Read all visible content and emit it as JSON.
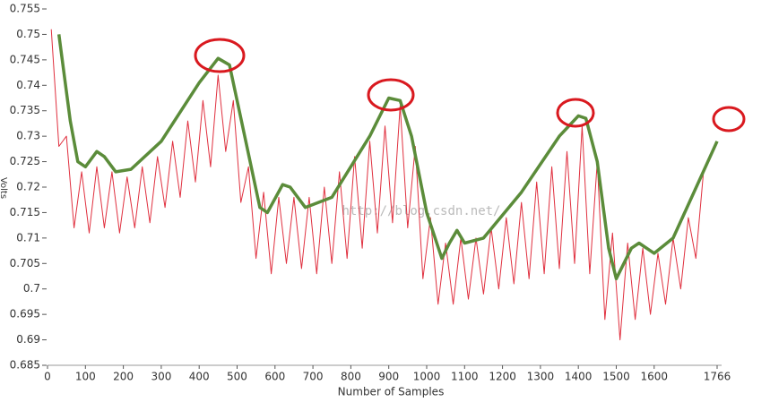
{
  "chart_data": {
    "type": "line",
    "x_label": "Number of Samples",
    "y_label": "Volts",
    "watermark": "http://blog.csdn.net/",
    "xlim": [
      0,
      1766
    ],
    "xticks": [
      0,
      100,
      200,
      300,
      400,
      500,
      600,
      700,
      800,
      900,
      1000,
      1100,
      1200,
      1300,
      1400,
      1500,
      1600,
      1766
    ],
    "ylim": [
      0.685,
      0.755
    ],
    "yticks": [
      0.685,
      0.69,
      0.695,
      0.7,
      0.705,
      0.71,
      0.715,
      0.72,
      0.725,
      0.73,
      0.735,
      0.74,
      0.745,
      0.75,
      0.755
    ],
    "series": [
      {
        "color": "#e0303f",
        "width": 1,
        "x": [
          10,
          30,
          50,
          70,
          90,
          110,
          130,
          150,
          170,
          190,
          210,
          230,
          250,
          270,
          290,
          310,
          330,
          350,
          370,
          390,
          410,
          430,
          450,
          470,
          490,
          510,
          530,
          550,
          570,
          590,
          610,
          630,
          650,
          670,
          690,
          710,
          730,
          750,
          770,
          790,
          810,
          830,
          850,
          870,
          890,
          910,
          930,
          950,
          970,
          990,
          1010,
          1030,
          1050,
          1070,
          1090,
          1110,
          1130,
          1150,
          1170,
          1190,
          1210,
          1230,
          1250,
          1270,
          1290,
          1310,
          1330,
          1350,
          1370,
          1390,
          1410,
          1430,
          1450,
          1470,
          1490,
          1510,
          1530,
          1550,
          1570,
          1590,
          1610,
          1630,
          1650,
          1670,
          1690,
          1710,
          1730
        ],
        "values": [
          0.751,
          0.728,
          0.73,
          0.712,
          0.723,
          0.711,
          0.724,
          0.712,
          0.723,
          0.711,
          0.722,
          0.712,
          0.724,
          0.713,
          0.726,
          0.716,
          0.729,
          0.718,
          0.733,
          0.721,
          0.737,
          0.724,
          0.742,
          0.727,
          0.737,
          0.717,
          0.724,
          0.706,
          0.719,
          0.703,
          0.718,
          0.705,
          0.718,
          0.704,
          0.718,
          0.703,
          0.72,
          0.705,
          0.723,
          0.706,
          0.726,
          0.708,
          0.729,
          0.711,
          0.732,
          0.713,
          0.736,
          0.712,
          0.728,
          0.702,
          0.714,
          0.697,
          0.709,
          0.697,
          0.71,
          0.698,
          0.71,
          0.699,
          0.712,
          0.7,
          0.714,
          0.701,
          0.717,
          0.702,
          0.721,
          0.703,
          0.724,
          0.704,
          0.727,
          0.705,
          0.732,
          0.703,
          0.725,
          0.694,
          0.711,
          0.69,
          0.709,
          0.694,
          0.708,
          0.695,
          0.707,
          0.697,
          0.71,
          0.7,
          0.714,
          0.706,
          0.723
        ]
      },
      {
        "color": "#5b8c3a",
        "width": 3.5,
        "x": [
          30,
          60,
          80,
          100,
          130,
          150,
          180,
          220,
          300,
          400,
          450,
          480,
          520,
          560,
          580,
          620,
          640,
          680,
          750,
          850,
          900,
          930,
          960,
          1000,
          1040,
          1060,
          1080,
          1100,
          1150,
          1250,
          1350,
          1400,
          1420,
          1450,
          1480,
          1500,
          1540,
          1560,
          1600,
          1650,
          1766
        ],
        "values": [
          0.75,
          0.733,
          0.725,
          0.724,
          0.727,
          0.726,
          0.723,
          0.7235,
          0.729,
          0.7405,
          0.7453,
          0.744,
          0.73,
          0.716,
          0.715,
          0.7205,
          0.72,
          0.716,
          0.718,
          0.73,
          0.7375,
          0.737,
          0.73,
          0.715,
          0.706,
          0.709,
          0.7115,
          0.709,
          0.71,
          0.719,
          0.73,
          0.734,
          0.7335,
          0.725,
          0.708,
          0.702,
          0.708,
          0.709,
          0.707,
          0.71,
          0.729
        ]
      }
    ]
  }
}
